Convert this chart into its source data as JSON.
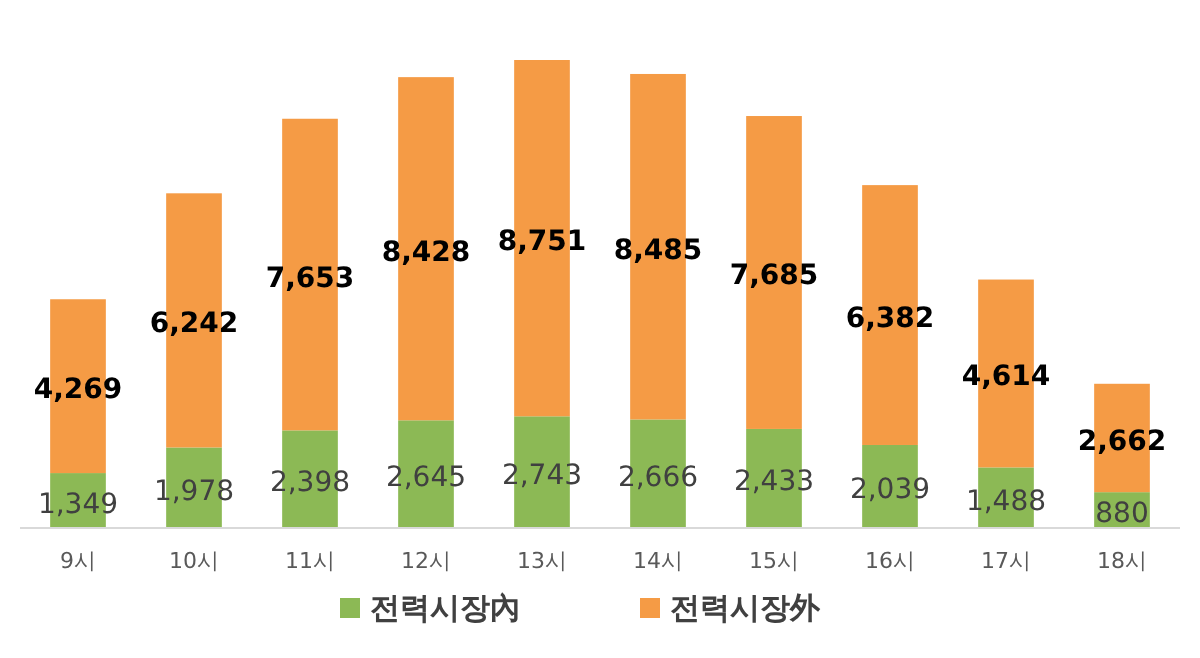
{
  "chart_data": {
    "type": "bar",
    "stacked": true,
    "legend": "bottom",
    "categories": [
      "9시",
      "10시",
      "11시",
      "12시",
      "13시",
      "14시",
      "15시",
      "16시",
      "17시",
      "18시"
    ],
    "series": [
      {
        "name": "전력시장內",
        "color": "#8cb955",
        "values": [
          1349,
          1978,
          2398,
          2645,
          2743,
          2666,
          2433,
          2039,
          1488,
          880
        ],
        "value_labels": [
          "1,349",
          "1,978",
          "2,398",
          "2,645",
          "2,743",
          "2,666",
          "2,433",
          "2,039",
          "1,488",
          "880"
        ]
      },
      {
        "name": "전력시장外",
        "color": "#f59b45",
        "values": [
          4269,
          6242,
          7653,
          8428,
          8751,
          8485,
          7685,
          6382,
          4614,
          2662
        ],
        "value_labels": [
          "4,269",
          "6,242",
          "7,653",
          "8,428",
          "8,751",
          "8,485",
          "7,685",
          "6,382",
          "4,614",
          "2,662"
        ]
      }
    ]
  }
}
